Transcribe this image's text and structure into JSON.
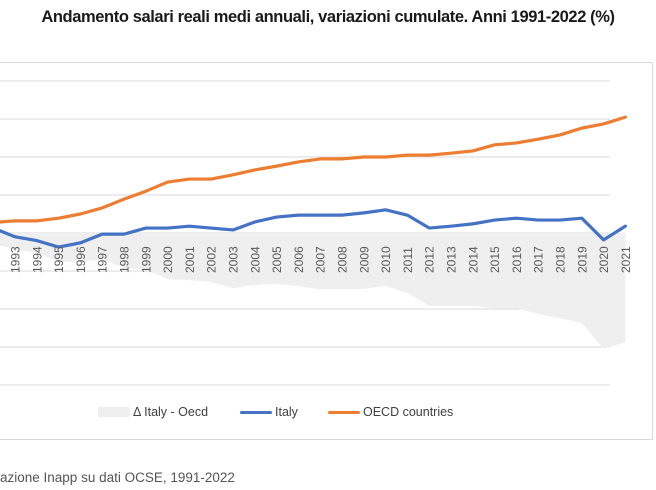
{
  "chart_data": {
    "type": "line",
    "title": "Andamento salari reali medi annuali, variazioni cumulate. Anni 1991-2022 (%)",
    "xlabel": "",
    "ylabel": "",
    "ylim": [
      -40,
      40
    ],
    "grid": true,
    "x": [
      1993,
      1994,
      1995,
      1996,
      1997,
      1998,
      1999,
      2000,
      2001,
      2002,
      2003,
      2004,
      2005,
      2006,
      2007,
      2008,
      2009,
      2010,
      2011,
      2012,
      2013,
      2014,
      2015,
      2016,
      2017,
      2018,
      2019,
      2020,
      2021
    ],
    "x_tick_labels": [
      "1993",
      "1994",
      "1995",
      "1996",
      "1997",
      "1998",
      "1999",
      "2000",
      "2001",
      "2002",
      "2003",
      "2004",
      "2005",
      "2006",
      "2007",
      "2008",
      "2009",
      "2010",
      "2011",
      "2012",
      "2013",
      "2014",
      "2015",
      "2016",
      "2017",
      "2018",
      "2019",
      "2020",
      "2021"
    ],
    "series": [
      {
        "name": "Δ Italy - Oecd",
        "type": "area",
        "color": "#efefef",
        "values": [
          -4.2,
          -5.2,
          -7.6,
          -7.6,
          -6.9,
          -9.2,
          -9.7,
          -12.1,
          -12.4,
          -12.9,
          -14.5,
          -13.7,
          -13.4,
          -14.0,
          -14.8,
          -14.8,
          -14.7,
          -13.9,
          -15.8,
          -19.2,
          -19.2,
          -19.2,
          -19.8,
          -19.8,
          -21.3,
          -22.4,
          -23.7,
          -30.5,
          -28.7
        ]
      },
      {
        "name": "Italy",
        "type": "line",
        "color": "#4472c4",
        "values": [
          -1.0,
          -2.0,
          -3.7,
          -2.6,
          -0.3,
          -0.3,
          1.3,
          1.3,
          1.8,
          1.3,
          0.8,
          2.9,
          4.2,
          4.7,
          4.7,
          4.7,
          5.3,
          6.1,
          4.7,
          1.3,
          1.8,
          2.4,
          3.4,
          3.9,
          3.4,
          3.4,
          3.9,
          -1.8,
          1.8
        ]
      },
      {
        "name": "OECD countries",
        "type": "line",
        "color": "#ed7d31",
        "values": [
          3.2,
          3.2,
          3.9,
          5.0,
          6.6,
          8.9,
          11.0,
          13.4,
          14.2,
          14.2,
          15.3,
          16.6,
          17.6,
          18.7,
          19.5,
          19.5,
          20.0,
          20.0,
          20.5,
          20.5,
          21.0,
          21.6,
          23.2,
          23.7,
          24.7,
          25.8,
          27.6,
          28.7,
          30.5
        ]
      }
    ],
    "legend": {
      "position": "bottom",
      "entries": [
        "Δ Italy - Oecd",
        "Italy",
        "OECD countries"
      ]
    }
  },
  "legend_labels": {
    "delta": "Δ Italy - Oecd",
    "italy": "Italy",
    "oecd": "OECD countries"
  },
  "source": "azione Inapp su dati OCSE, 1991-2022"
}
